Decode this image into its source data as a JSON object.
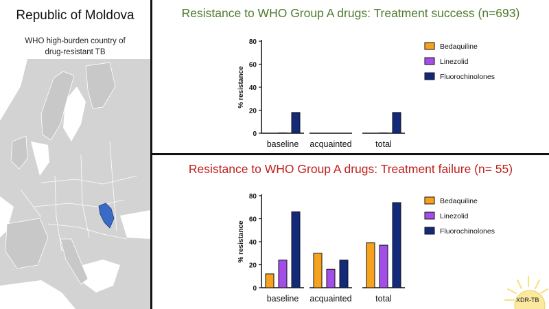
{
  "left_panel": {
    "country": "Republic of Moldova",
    "subtitle_line1": "WHO high-burden country of",
    "subtitle_line2": "drug-resistant  TB",
    "map_highlight_color": "#3a6bc4"
  },
  "sun_label": "XDR-TB",
  "colors": {
    "Bedaquiline": "#f7a21e",
    "Linezolid": "#a34ee8",
    "Fluorochinolones": "#132a7a"
  },
  "chart_data": [
    {
      "type": "bar",
      "title": "Resistance to WHO Group A drugs: Treatment success (n=693)",
      "title_color": "#4e7a2c",
      "xlabel": "",
      "ylabel": "% resistance",
      "ylim": [
        0,
        80
      ],
      "yticks": [
        "0",
        "20",
        "40",
        "60",
        "80"
      ],
      "categories": [
        "baseline",
        "acquainted",
        "total"
      ],
      "series": [
        {
          "name": "Bedaquiline",
          "values": [
            0,
            0,
            0
          ]
        },
        {
          "name": "Linezolid",
          "values": [
            0.3,
            0,
            0.3
          ]
        },
        {
          "name": "Fluorochinolones",
          "values": [
            18,
            0,
            18
          ]
        }
      ],
      "legend_position": "right"
    },
    {
      "type": "bar",
      "title": "Resistance to WHO Group A drugs: Treatment failure (n= 55)",
      "title_color": "#c0211e",
      "xlabel": "",
      "ylabel": "% resistance",
      "ylim": [
        0,
        80
      ],
      "yticks": [
        "0",
        "20",
        "40",
        "60",
        "80"
      ],
      "categories": [
        "baseline",
        "acquainted",
        "total"
      ],
      "series": [
        {
          "name": "Bedaquiline",
          "values": [
            12,
            30,
            39
          ]
        },
        {
          "name": "Linezolid",
          "values": [
            24,
            16,
            37
          ]
        },
        {
          "name": "Fluorochinolones",
          "values": [
            66,
            24,
            74
          ]
        }
      ],
      "legend_position": "right"
    }
  ]
}
